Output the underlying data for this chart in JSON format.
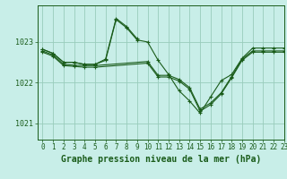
{
  "title": "Graphe pression niveau de la mer (hPa)",
  "background_color": "#c8eee8",
  "grid_color": "#99ccbb",
  "line_color": "#1a5c1a",
  "xlim": [
    -0.5,
    23
  ],
  "ylim": [
    1020.6,
    1023.9
  ],
  "yticks": [
    1021,
    1022,
    1023
  ],
  "xticks": [
    0,
    1,
    2,
    3,
    4,
    5,
    6,
    7,
    8,
    9,
    10,
    11,
    12,
    13,
    14,
    15,
    16,
    17,
    18,
    19,
    20,
    21,
    22,
    23
  ],
  "series": [
    {
      "x": [
        0,
        1,
        2,
        3,
        4,
        5,
        6,
        7,
        8,
        9,
        10,
        11,
        12,
        13,
        14,
        15,
        16,
        17,
        18,
        19,
        20,
        21,
        22,
        23
      ],
      "y": [
        1022.82,
        1022.72,
        1022.5,
        1022.5,
        1022.45,
        1022.45,
        1022.55,
        1023.55,
        1023.35,
        1023.05,
        1023.0,
        1022.55,
        1022.2,
        1021.8,
        1021.55,
        1021.25,
        1021.65,
        1022.05,
        1022.2,
        1022.6,
        1022.85,
        1022.85,
        1022.85,
        1022.85
      ]
    },
    {
      "x": [
        0,
        1,
        2,
        3,
        4,
        5,
        6,
        7,
        8,
        9
      ],
      "y": [
        1022.82,
        1022.72,
        1022.5,
        1022.5,
        1022.45,
        1022.45,
        1022.58,
        1023.58,
        1023.38,
        1023.08
      ]
    },
    {
      "x": [
        0,
        1,
        2,
        3,
        4,
        5,
        10,
        11,
        12,
        13,
        14,
        15,
        16,
        17,
        18,
        19,
        20,
        21,
        22,
        23
      ],
      "y": [
        1022.78,
        1022.68,
        1022.45,
        1022.43,
        1022.42,
        1022.42,
        1022.52,
        1022.18,
        1022.18,
        1022.08,
        1021.88,
        1021.35,
        1021.5,
        1021.75,
        1022.15,
        1022.58,
        1022.78,
        1022.78,
        1022.78,
        1022.78
      ]
    },
    {
      "x": [
        0,
        1,
        2,
        3,
        4,
        5,
        10,
        11,
        12,
        13,
        14,
        15,
        16,
        17,
        18,
        19,
        20,
        21,
        22,
        23
      ],
      "y": [
        1022.75,
        1022.65,
        1022.42,
        1022.4,
        1022.38,
        1022.38,
        1022.48,
        1022.14,
        1022.14,
        1022.04,
        1021.84,
        1021.3,
        1021.46,
        1021.72,
        1022.12,
        1022.55,
        1022.75,
        1022.75,
        1022.75,
        1022.75
      ]
    }
  ],
  "title_fontsize": 7,
  "tick_fontsize": 5.5
}
